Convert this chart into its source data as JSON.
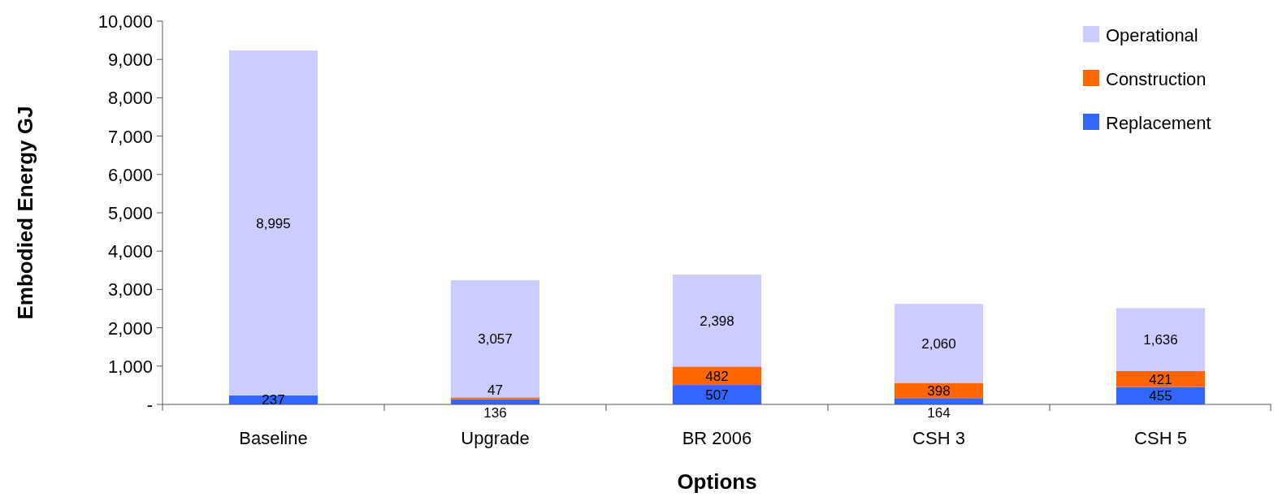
{
  "chart_data": {
    "type": "bar",
    "stacked": true,
    "xlabel": "Options",
    "ylabel": "Embodied Energy GJ",
    "categories": [
      "Baseline",
      "Upgrade",
      "BR 2006",
      "CSH 3",
      "CSH 5"
    ],
    "series": [
      {
        "name": "Replacement",
        "color": "#3366ff",
        "values": [
          237,
          136,
          507,
          164,
          455
        ],
        "value_labels": [
          "237",
          "136",
          "507",
          "164",
          "455"
        ]
      },
      {
        "name": "Construction",
        "color": "#ff6600",
        "values": [
          null,
          47,
          482,
          398,
          421
        ],
        "value_labels": [
          null,
          "47",
          "482",
          "398",
          "421"
        ]
      },
      {
        "name": "Operational",
        "color": "#ccccff",
        "values": [
          8995,
          3057,
          2398,
          2060,
          1636
        ],
        "value_labels": [
          "8,995",
          "3,057",
          "2,398",
          "2,060",
          "1,636"
        ]
      }
    ],
    "ylim": [
      0,
      10000
    ],
    "yticks": [
      {
        "value": 0,
        "label": "-"
      },
      {
        "value": 1000,
        "label": "1,000"
      },
      {
        "value": 2000,
        "label": "2,000"
      },
      {
        "value": 3000,
        "label": "3,000"
      },
      {
        "value": 4000,
        "label": "4,000"
      },
      {
        "value": 5000,
        "label": "5,000"
      },
      {
        "value": 6000,
        "label": "6,000"
      },
      {
        "value": 7000,
        "label": "7,000"
      },
      {
        "value": 8000,
        "label": "8,000"
      },
      {
        "value": 9000,
        "label": "9,000"
      },
      {
        "value": 10000,
        "label": "10,000"
      }
    ],
    "data_labels": true,
    "legend": "top right",
    "grid": false
  }
}
